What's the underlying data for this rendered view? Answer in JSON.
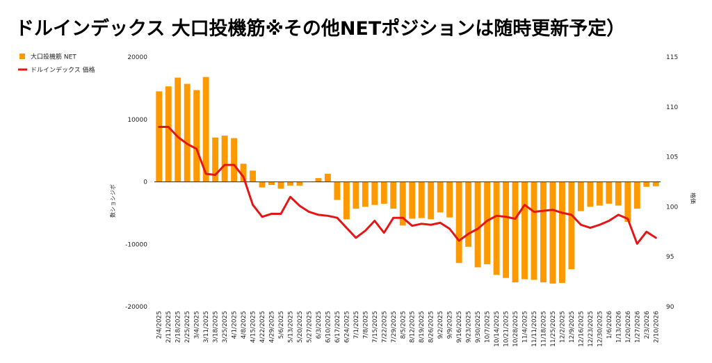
{
  "title": "ドルインデックス 大口投機筋※その他NETポジションは随時更新予定）",
  "colors": {
    "bar": "#FF9900",
    "line": "#E61515",
    "axis": "#333333",
    "grid": "#e6e6e6"
  },
  "chart_data": {
    "type": "bar+line",
    "title": "ドルインデックス 大口投機筋※その他NETポジションは随時更新予定）",
    "ylabel": "数ショシジボ",
    "y2label": "格価",
    "ylim": [
      -20000,
      20000
    ],
    "yticks": [
      20000,
      10000,
      0,
      -10000,
      -20000
    ],
    "y2lim": [
      90,
      115
    ],
    "y2ticks": [
      115,
      110,
      105,
      100,
      95,
      90
    ],
    "legend": [
      {
        "name": "大口投機筋  NET",
        "kind": "bar"
      },
      {
        "name": "ドルインデックス 価格",
        "kind": "line"
      }
    ],
    "categories": [
      "2/4/2025",
      "2/11/2025",
      "2/18/2025",
      "2/25/2025",
      "3/4/2025",
      "3/11/2025",
      "3/18/2025",
      "3/25/2025",
      "4/1/2025",
      "4/8/2025",
      "4/15/2025",
      "4/22/2025",
      "4/29/2025",
      "5/6/2025",
      "5/13/2025",
      "5/20/2025",
      "5/27/2025",
      "6/3/2025",
      "6/10/2025",
      "6/17/2025",
      "6/24/2025",
      "7/1/2025",
      "7/8/2025",
      "7/15/2025",
      "7/22/2025",
      "7/29/2025",
      "8/5/2025",
      "8/12/2025",
      "8/19/2025",
      "8/26/2025",
      "9/2/2025",
      "9/9/2025",
      "9/16/2025",
      "9/23/2025",
      "9/30/2025",
      "10/7/2025",
      "10/14/2025",
      "10/21/2025",
      "10/28/2025",
      "11/4/2025",
      "11/11/2025",
      "11/18/2025",
      "11/25/2025",
      "12/2/2025",
      "12/9/2025",
      "12/16/2025",
      "12/23/2025",
      "12/30/2025",
      "1/6/2026",
      "1/13/2026",
      "1/20/2026",
      "1/27/2026",
      "2/3/2026",
      "2/10/2026"
    ],
    "series": [
      {
        "name": "大口投機筋  NET",
        "type": "bar",
        "axis": "left",
        "values": [
          14500,
          15300,
          16700,
          15700,
          14700,
          16800,
          7100,
          7400,
          7000,
          2900,
          1800,
          -900,
          -500,
          -1100,
          -600,
          -600,
          0,
          600,
          1300,
          -2900,
          -6000,
          -4300,
          -4000,
          -3700,
          -3500,
          -4300,
          -7000,
          -5900,
          -5800,
          -6000,
          -4900,
          -5700,
          -13000,
          -10400,
          -13700,
          -13200,
          -14900,
          -15400,
          -16100,
          -15600,
          -15700,
          -16100,
          -16300,
          -16200,
          -14000,
          -4700,
          -4000,
          -3800,
          -3500,
          -3800,
          -6400,
          -4300,
          -800,
          -700
        ]
      },
      {
        "name": "ドルインデックス 価格",
        "type": "line",
        "axis": "right",
        "values": [
          108.0,
          108.0,
          107.0,
          106.3,
          105.8,
          103.3,
          103.2,
          104.2,
          104.2,
          103.0,
          100.2,
          99.0,
          99.3,
          99.3,
          101.0,
          100.1,
          99.5,
          99.2,
          99.1,
          98.9,
          97.9,
          96.9,
          97.6,
          98.6,
          97.4,
          98.9,
          98.9,
          98.1,
          98.3,
          98.2,
          98.4,
          97.8,
          96.6,
          97.3,
          97.8,
          98.6,
          99.1,
          99.0,
          98.8,
          100.2,
          99.5,
          99.6,
          99.7,
          99.4,
          99.2,
          98.2,
          97.9,
          98.2,
          98.6,
          99.2,
          98.8,
          96.3,
          97.5,
          96.9
        ]
      }
    ]
  }
}
